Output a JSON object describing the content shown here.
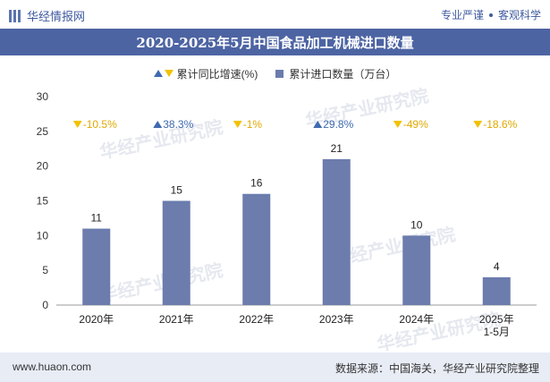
{
  "header": {
    "logo_text": "华经情报网",
    "right_left": "专业严谨",
    "right_right": "客观科学"
  },
  "title": "2020-2025年5月中国食品加工机械进口数量",
  "legend": {
    "growth_label": "累计同比增速(%)",
    "count_label": "累计进口数量（万台）"
  },
  "watermark": "华经产业研究院",
  "footer": {
    "website": "www.huaon.com",
    "source": "数据来源：中国海关，华经产业研究院整理"
  },
  "colors": {
    "bar": "#6b7cad",
    "up_triangle": "#3e6ab0",
    "down_triangle": "#f2c200",
    "down_text": "#e0a800",
    "up_text": "#3e6ab0",
    "title_bg": "#4d64a3"
  },
  "chart_data": {
    "type": "bar",
    "categories": [
      "2020年",
      "2021年",
      "2022年",
      "2023年",
      "2024年",
      "2025年\n1-5月"
    ],
    "series": [
      {
        "name": "累计进口数量（万台）",
        "values": [
          11,
          15,
          16,
          21,
          10,
          4
        ]
      }
    ],
    "growth": [
      {
        "label": "-10.5%",
        "direction": "down"
      },
      {
        "label": "38.3%",
        "direction": "up"
      },
      {
        "label": "-1%",
        "direction": "down"
      },
      {
        "label": "29.8%",
        "direction": "up"
      },
      {
        "label": "-49%",
        "direction": "down"
      },
      {
        "label": "-18.6%",
        "direction": "down"
      }
    ],
    "yticks": [
      0,
      5,
      10,
      15,
      20,
      25,
      30
    ],
    "ylim": [
      0,
      30
    ],
    "grid": false,
    "legend_position": "top-center"
  }
}
